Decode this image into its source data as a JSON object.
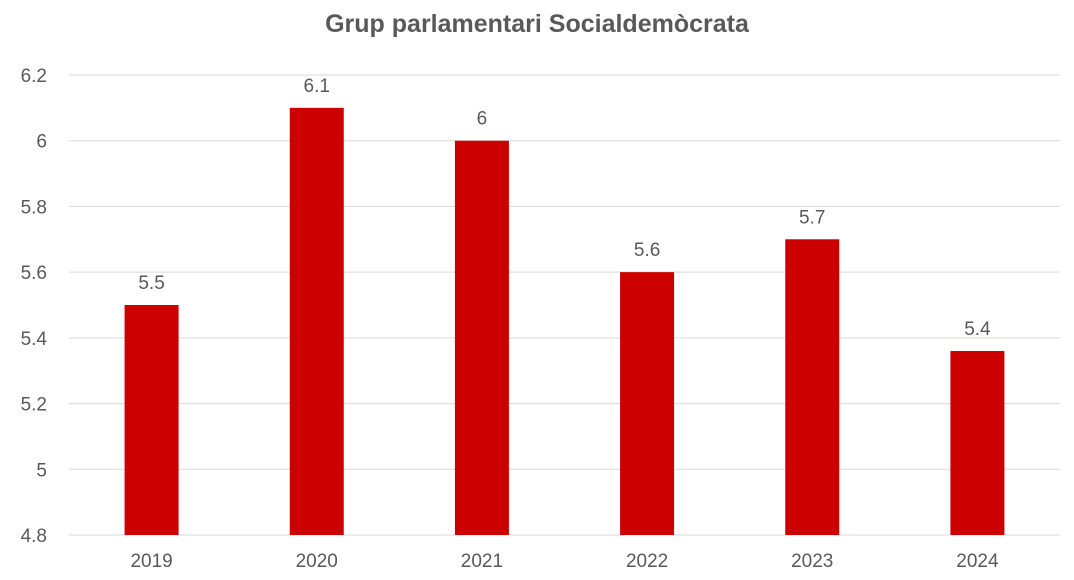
{
  "chart_data": {
    "type": "bar",
    "title": "Grup parlamentari Socialdemòcrata",
    "categories": [
      "2019",
      "2020",
      "2021",
      "2022",
      "2023",
      "2024"
    ],
    "values": [
      5.5,
      6.1,
      6.0,
      5.6,
      5.7,
      5.36
    ],
    "data_labels": [
      "5.5",
      "6.1",
      "6",
      "5.6",
      "5.7",
      "5.4"
    ],
    "y_ticks": [
      "4.8",
      "5",
      "5.2",
      "5.4",
      "5.6",
      "5.8",
      "6",
      "6.2"
    ],
    "ylim": [
      4.8,
      6.2
    ],
    "xlabel": "",
    "ylabel": "",
    "grid": true,
    "legend": "none",
    "colors": {
      "bar": "#cc0000",
      "grid": "#d9d9d9",
      "text": "#595959",
      "title": "#595959"
    }
  }
}
